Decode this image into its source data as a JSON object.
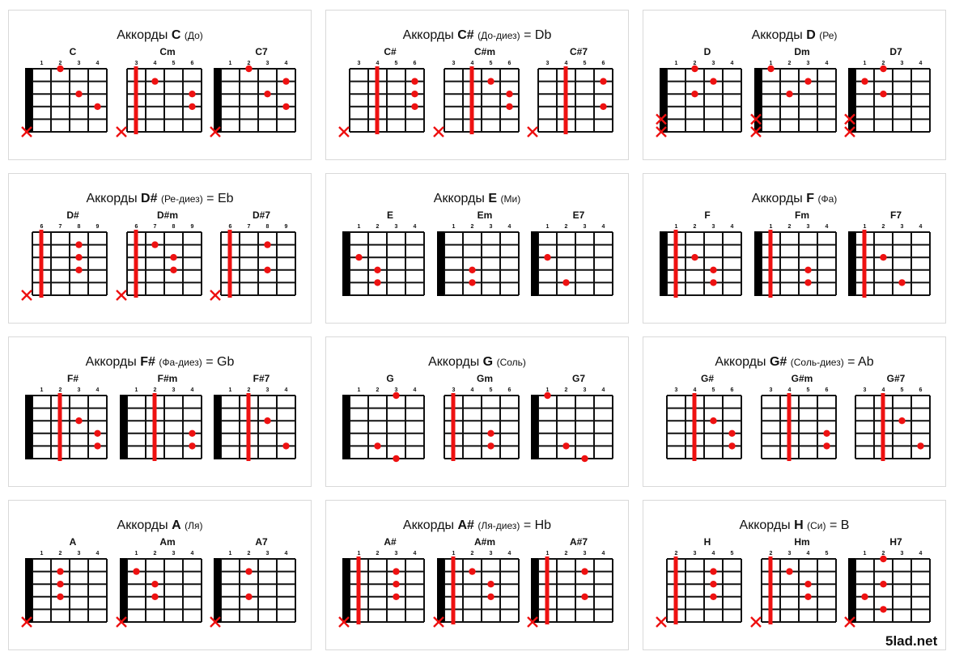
{
  "colors": {
    "dot": "#ee1111",
    "barre": "#ee1111",
    "cross": "#ee1111",
    "grid": "#111111",
    "nut": "#000000",
    "card_border": "#d9d9d9"
  },
  "brand": "5lad.net",
  "cards": [
    {
      "prefix": "Аккорды",
      "root": "C",
      "note": "(До)",
      "alias": "",
      "chords": [
        {
          "name": "C",
          "frets": [
            "1",
            "2",
            "3",
            "4"
          ],
          "nut": true,
          "barre": null,
          "dots": [
            [
              1,
              2
            ],
            [
              3,
              3
            ],
            [
              4,
              4
            ]
          ],
          "muted": [
            6
          ]
        },
        {
          "name": "Cm",
          "frets": [
            "3",
            "4",
            "5",
            "6"
          ],
          "nut": false,
          "barre": 1,
          "dots": [
            [
              2,
              2
            ],
            [
              3,
              4
            ],
            [
              4,
              4
            ]
          ],
          "muted": [
            6
          ]
        },
        {
          "name": "C7",
          "frets": [
            "1",
            "2",
            "3",
            "4"
          ],
          "nut": true,
          "barre": null,
          "dots": [
            [
              1,
              2
            ],
            [
              2,
              4
            ],
            [
              3,
              3
            ],
            [
              4,
              4
            ]
          ],
          "muted": [
            6
          ]
        }
      ]
    },
    {
      "prefix": "Аккорды",
      "root": "C#",
      "note": "(До-диез)",
      "alias": "= Db",
      "chords": [
        {
          "name": "C#",
          "frets": [
            "3",
            "4",
            "5",
            "6"
          ],
          "nut": false,
          "barre": 2,
          "dots": [
            [
              2,
              4
            ],
            [
              3,
              4
            ],
            [
              4,
              4
            ]
          ],
          "muted": [
            6
          ]
        },
        {
          "name": "C#m",
          "frets": [
            "3",
            "4",
            "5",
            "6"
          ],
          "nut": false,
          "barre": 2,
          "dots": [
            [
              2,
              3
            ],
            [
              3,
              4
            ],
            [
              4,
              4
            ]
          ],
          "muted": [
            6
          ]
        },
        {
          "name": "C#7",
          "frets": [
            "3",
            "4",
            "5",
            "6"
          ],
          "nut": false,
          "barre": 2,
          "dots": [
            [
              2,
              4
            ],
            [
              4,
              4
            ]
          ],
          "muted": [
            6
          ]
        }
      ]
    },
    {
      "prefix": "Аккорды",
      "root": "D",
      "note": "(Ре)",
      "alias": "",
      "chords": [
        {
          "name": "D",
          "frets": [
            "1",
            "2",
            "3",
            "4"
          ],
          "nut": true,
          "barre": null,
          "dots": [
            [
              1,
              2
            ],
            [
              2,
              3
            ],
            [
              3,
              2
            ]
          ],
          "muted": [
            5,
            6
          ]
        },
        {
          "name": "Dm",
          "frets": [
            "1",
            "2",
            "3",
            "4"
          ],
          "nut": true,
          "barre": null,
          "dots": [
            [
              1,
              1
            ],
            [
              2,
              3
            ],
            [
              3,
              2
            ]
          ],
          "muted": [
            5,
            6
          ]
        },
        {
          "name": "D7",
          "frets": [
            "1",
            "2",
            "3",
            "4"
          ],
          "nut": true,
          "barre": null,
          "dots": [
            [
              1,
              2
            ],
            [
              2,
              1
            ],
            [
              3,
              2
            ]
          ],
          "muted": [
            5,
            6
          ]
        }
      ]
    },
    {
      "prefix": "Аккорды",
      "root": "D#",
      "note": "(Ре-диез)",
      "alias": "= Eb",
      "chords": [
        {
          "name": "D#",
          "frets": [
            "6",
            "7",
            "8",
            "9"
          ],
          "nut": false,
          "barre": 1,
          "dots": [
            [
              2,
              3
            ],
            [
              3,
              3
            ],
            [
              4,
              3
            ]
          ],
          "muted": [
            6
          ]
        },
        {
          "name": "D#m",
          "frets": [
            "6",
            "7",
            "8",
            "9"
          ],
          "nut": false,
          "barre": 1,
          "dots": [
            [
              2,
              2
            ],
            [
              3,
              3
            ],
            [
              4,
              3
            ]
          ],
          "muted": [
            6
          ]
        },
        {
          "name": "D#7",
          "frets": [
            "6",
            "7",
            "8",
            "9"
          ],
          "nut": false,
          "barre": 1,
          "dots": [
            [
              2,
              3
            ],
            [
              4,
              3
            ]
          ],
          "muted": [
            6
          ]
        }
      ]
    },
    {
      "prefix": "Аккорды",
      "root": "E",
      "note": "(Ми)",
      "alias": "",
      "chords": [
        {
          "name": "E",
          "frets": [
            "1",
            "2",
            "3",
            "4"
          ],
          "nut": true,
          "barre": null,
          "dots": [
            [
              3,
              1
            ],
            [
              4,
              2
            ],
            [
              5,
              2
            ]
          ],
          "muted": []
        },
        {
          "name": "Em",
          "frets": [
            "1",
            "2",
            "3",
            "4"
          ],
          "nut": true,
          "barre": null,
          "dots": [
            [
              4,
              2
            ],
            [
              5,
              2
            ]
          ],
          "muted": []
        },
        {
          "name": "E7",
          "frets": [
            "1",
            "2",
            "3",
            "4"
          ],
          "nut": true,
          "barre": null,
          "dots": [
            [
              3,
              1
            ],
            [
              5,
              2
            ]
          ],
          "muted": []
        }
      ]
    },
    {
      "prefix": "Аккорды",
      "root": "F",
      "note": "(Фа)",
      "alias": "",
      "chords": [
        {
          "name": "F",
          "frets": [
            "1",
            "2",
            "3",
            "4"
          ],
          "nut": true,
          "barre": 1,
          "dots": [
            [
              3,
              2
            ],
            [
              4,
              3
            ],
            [
              5,
              3
            ]
          ],
          "muted": []
        },
        {
          "name": "Fm",
          "frets": [
            "1",
            "2",
            "3",
            "4"
          ],
          "nut": true,
          "barre": 1,
          "dots": [
            [
              4,
              3
            ],
            [
              5,
              3
            ]
          ],
          "muted": []
        },
        {
          "name": "F7",
          "frets": [
            "1",
            "2",
            "3",
            "4"
          ],
          "nut": true,
          "barre": 1,
          "dots": [
            [
              3,
              2
            ],
            [
              5,
              3
            ]
          ],
          "muted": []
        }
      ]
    },
    {
      "prefix": "Аккорды",
      "root": "F#",
      "note": "(Фа-диез)",
      "alias": "= Gb",
      "chords": [
        {
          "name": "F#",
          "frets": [
            "1",
            "2",
            "3",
            "4"
          ],
          "nut": true,
          "barre": 2,
          "dots": [
            [
              3,
              3
            ],
            [
              4,
              4
            ],
            [
              5,
              4
            ]
          ],
          "muted": []
        },
        {
          "name": "F#m",
          "frets": [
            "1",
            "2",
            "3",
            "4"
          ],
          "nut": true,
          "barre": 2,
          "dots": [
            [
              4,
              4
            ],
            [
              5,
              4
            ]
          ],
          "muted": []
        },
        {
          "name": "F#7",
          "frets": [
            "1",
            "2",
            "3",
            "4"
          ],
          "nut": true,
          "barre": 2,
          "dots": [
            [
              3,
              3
            ],
            [
              5,
              4
            ]
          ],
          "muted": []
        }
      ]
    },
    {
      "prefix": "Аккорды",
      "root": "G",
      "note": "(Соль)",
      "alias": "",
      "chords": [
        {
          "name": "G",
          "frets": [
            "1",
            "2",
            "3",
            "4"
          ],
          "nut": true,
          "barre": null,
          "dots": [
            [
              1,
              3
            ],
            [
              5,
              2
            ],
            [
              6,
              3
            ]
          ],
          "muted": []
        },
        {
          "name": "Gm",
          "frets": [
            "3",
            "4",
            "5",
            "6"
          ],
          "nut": false,
          "barre": 1,
          "dots": [
            [
              4,
              3
            ],
            [
              5,
              3
            ]
          ],
          "muted": []
        },
        {
          "name": "G7",
          "frets": [
            "1",
            "2",
            "3",
            "4"
          ],
          "nut": true,
          "barre": null,
          "dots": [
            [
              1,
              1
            ],
            [
              5,
              2
            ],
            [
              6,
              3
            ]
          ],
          "muted": []
        }
      ]
    },
    {
      "prefix": "Аккорды",
      "root": "G#",
      "note": "(Соль-диез)",
      "alias": "= Ab",
      "chords": [
        {
          "name": "G#",
          "frets": [
            "3",
            "4",
            "5",
            "6"
          ],
          "nut": false,
          "barre": 2,
          "dots": [
            [
              3,
              3
            ],
            [
              4,
              4
            ],
            [
              5,
              4
            ]
          ],
          "muted": []
        },
        {
          "name": "G#m",
          "frets": [
            "3",
            "4",
            "5",
            "6"
          ],
          "nut": false,
          "barre": 2,
          "dots": [
            [
              4,
              4
            ],
            [
              5,
              4
            ]
          ],
          "muted": []
        },
        {
          "name": "G#7",
          "frets": [
            "3",
            "4",
            "5",
            "6"
          ],
          "nut": false,
          "barre": 2,
          "dots": [
            [
              3,
              3
            ],
            [
              5,
              4
            ]
          ],
          "muted": []
        }
      ]
    },
    {
      "prefix": "Аккорды",
      "root": "A",
      "note": "(Ля)",
      "alias": "",
      "chords": [
        {
          "name": "A",
          "frets": [
            "1",
            "2",
            "3",
            "4"
          ],
          "nut": true,
          "barre": null,
          "dots": [
            [
              2,
              2
            ],
            [
              3,
              2
            ],
            [
              4,
              2
            ]
          ],
          "muted": [
            6
          ]
        },
        {
          "name": "Am",
          "frets": [
            "1",
            "2",
            "3",
            "4"
          ],
          "nut": true,
          "barre": null,
          "dots": [
            [
              2,
              1
            ],
            [
              3,
              2
            ],
            [
              4,
              2
            ]
          ],
          "muted": [
            6
          ]
        },
        {
          "name": "A7",
          "frets": [
            "1",
            "2",
            "3",
            "4"
          ],
          "nut": true,
          "barre": null,
          "dots": [
            [
              2,
              2
            ],
            [
              4,
              2
            ]
          ],
          "muted": [
            6
          ]
        }
      ]
    },
    {
      "prefix": "Аккорды",
      "root": "A#",
      "note": "(Ля-диез)",
      "alias": "= Hb",
      "chords": [
        {
          "name": "A#",
          "frets": [
            "1",
            "2",
            "3",
            "4"
          ],
          "nut": true,
          "barre": 1,
          "dots": [
            [
              2,
              3
            ],
            [
              3,
              3
            ],
            [
              4,
              3
            ]
          ],
          "muted": [
            6
          ]
        },
        {
          "name": "A#m",
          "frets": [
            "1",
            "2",
            "3",
            "4"
          ],
          "nut": true,
          "barre": 1,
          "dots": [
            [
              2,
              2
            ],
            [
              3,
              3
            ],
            [
              4,
              3
            ]
          ],
          "muted": [
            6
          ]
        },
        {
          "name": "A#7",
          "frets": [
            "1",
            "2",
            "3",
            "4"
          ],
          "nut": true,
          "barre": 1,
          "dots": [
            [
              2,
              3
            ],
            [
              4,
              3
            ]
          ],
          "muted": [
            6
          ]
        }
      ]
    },
    {
      "prefix": "Аккорды",
      "root": "H",
      "note": "(Си)",
      "alias": "= B",
      "chords": [
        {
          "name": "H",
          "frets": [
            "2",
            "3",
            "4",
            "5"
          ],
          "nut": false,
          "barre": 1,
          "dots": [
            [
              2,
              3
            ],
            [
              3,
              3
            ],
            [
              4,
              3
            ]
          ],
          "muted": [
            6
          ]
        },
        {
          "name": "Hm",
          "frets": [
            "2",
            "3",
            "4",
            "5"
          ],
          "nut": false,
          "barre": 1,
          "dots": [
            [
              2,
              2
            ],
            [
              3,
              3
            ],
            [
              4,
              3
            ]
          ],
          "muted": [
            6
          ]
        },
        {
          "name": "H7",
          "frets": [
            "1",
            "2",
            "3",
            "4"
          ],
          "nut": true,
          "barre": null,
          "dots": [
            [
              1,
              2
            ],
            [
              3,
              2
            ],
            [
              4,
              1
            ],
            [
              5,
              2
            ]
          ],
          "muted": [
            6
          ]
        }
      ]
    }
  ]
}
